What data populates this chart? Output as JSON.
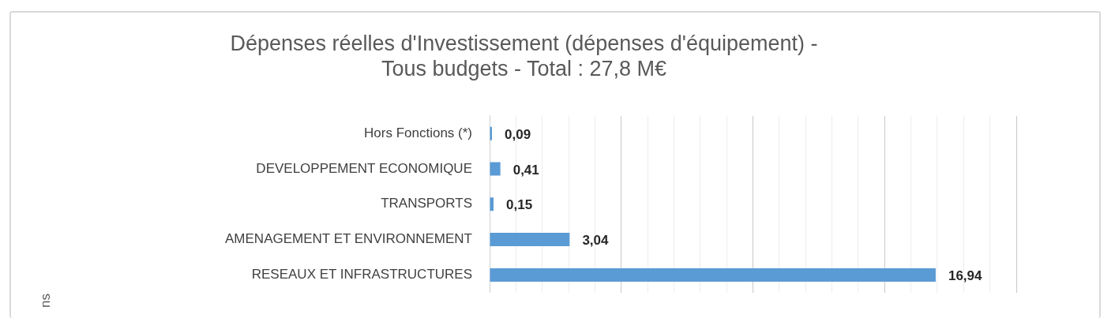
{
  "chart_data": {
    "type": "bar",
    "orientation": "horizontal",
    "title": "Dépenses réelles d'Investissement (dépenses d'équipement) -\nTous budgets - Total : 27,8 M€",
    "annotations": [
      "ns"
    ],
    "categories": [
      "Hors Fonctions (*)",
      "DEVELOPPEMENT ECONOMIQUE",
      "TRANSPORTS",
      "AMENAGEMENT ET ENVIRONNEMENT",
      "RESEAUX ET INFRASTRUCTURES"
    ],
    "values": [
      0.09,
      0.41,
      0.15,
      3.04,
      16.94
    ],
    "value_labels": [
      "0,09",
      "0,41",
      "0,15",
      "3,04",
      "16,94"
    ],
    "color": "#5b9bd5",
    "xlim": [
      0,
      20
    ],
    "xticks": [
      {
        "value": 0,
        "label": null
      },
      {
        "value": 1,
        "label": null
      },
      {
        "value": 2,
        "label": null
      },
      {
        "value": 3,
        "label": null
      },
      {
        "value": 4,
        "label": null
      },
      {
        "value": 5,
        "label": null
      },
      {
        "value": 6,
        "label": null
      },
      {
        "value": 7,
        "label": null
      },
      {
        "value": 8,
        "label": null
      },
      {
        "value": 9,
        "label": null
      },
      {
        "value": 10,
        "label": null
      },
      {
        "value": 11,
        "label": null
      },
      {
        "value": 12,
        "label": null
      },
      {
        "value": 13,
        "label": null
      },
      {
        "value": 14,
        "label": null
      },
      {
        "value": 15,
        "label": null
      },
      {
        "value": 16,
        "label": null
      },
      {
        "value": 17,
        "label": null
      },
      {
        "value": 18,
        "label": null
      },
      {
        "value": 19,
        "label": null
      },
      {
        "value": 20,
        "label": null
      }
    ],
    "grid": "x",
    "tick_labels": "y"
  }
}
